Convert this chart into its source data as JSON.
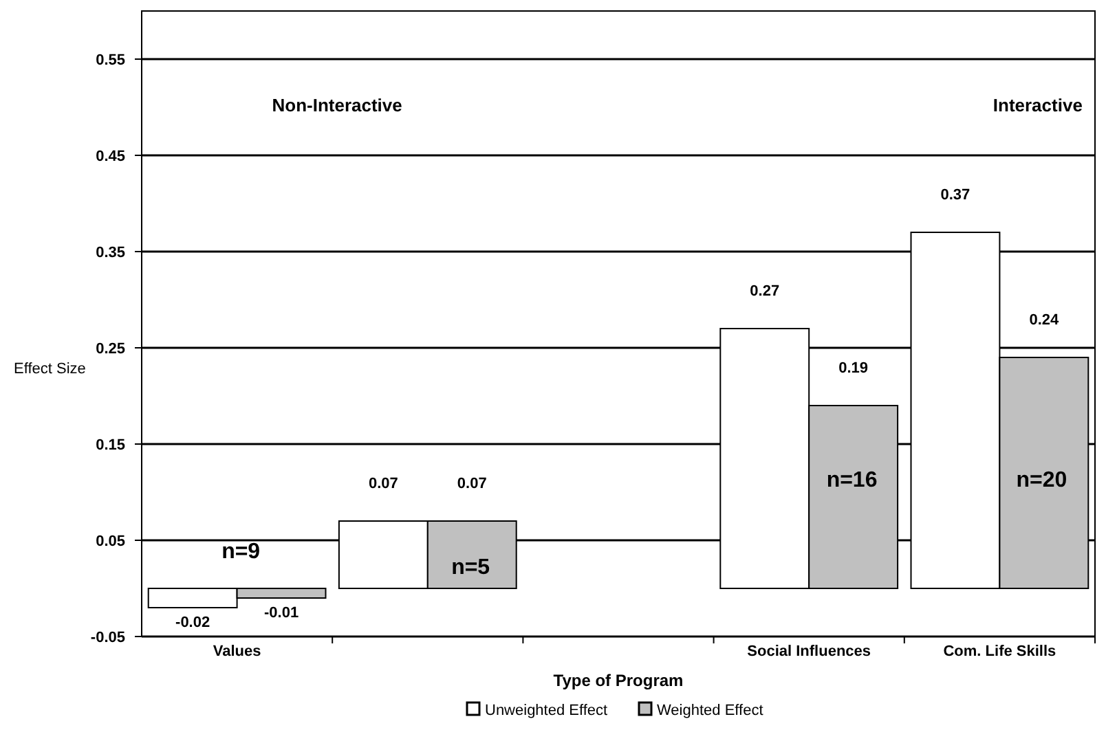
{
  "chart_data": {
    "type": "bar",
    "xlabel": "Type of Program",
    "ylabel": "Effect Size",
    "categories": [
      "Values",
      null,
      null,
      "Social Influences",
      "Com. Life Skills"
    ],
    "series": [
      {
        "name": "Unweighted Effect",
        "color": "#ffffff",
        "values": [
          -0.02,
          0.07,
          null,
          0.27,
          0.37
        ]
      },
      {
        "name": "Weighted Effect",
        "color": "#c0c0c0",
        "values": [
          -0.01,
          0.07,
          null,
          0.19,
          0.24
        ]
      }
    ],
    "ylim": [
      -0.05,
      0.6
    ],
    "yticks": [
      -0.05,
      0.05,
      0.15,
      0.25,
      0.35,
      0.45,
      0.55
    ],
    "grid": "y",
    "legend": "bottom",
    "data_labels": true,
    "annotations": [
      "Non-Interactive",
      "Interactive",
      "n=9",
      "n=5",
      "n=16",
      "n=20"
    ]
  }
}
